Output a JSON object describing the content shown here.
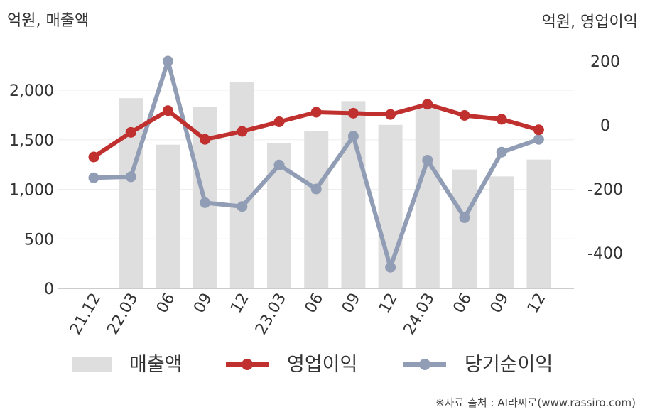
{
  "chart_data": {
    "type": "bar+line",
    "left_axis_unit": "억원, 매출액",
    "right_axis_unit": "억원, 영업이익",
    "categories": [
      "21.12",
      "22.03",
      "06",
      "09",
      "12",
      "23.03",
      "06",
      "09",
      "12",
      "24.03",
      "06",
      "09",
      "12"
    ],
    "left_ticks": [
      "0",
      "500",
      "1,000",
      "1,500",
      "2,000"
    ],
    "right_ticks": [
      "200",
      "0",
      "-200",
      "-400"
    ],
    "left_ylim": [
      0,
      2300
    ],
    "right_ylim": [
      -510,
      200
    ],
    "series": [
      {
        "name": "매출액",
        "type": "bar",
        "axis": "left",
        "color": "#dedede",
        "values": [
          null,
          1920,
          1450,
          1835,
          2080,
          1470,
          1590,
          1890,
          1650,
          1840,
          1200,
          1130,
          1300
        ]
      },
      {
        "name": "영업이익",
        "type": "line",
        "axis": "right",
        "color": "#c0302f",
        "values": [
          -100,
          -23,
          45,
          -45,
          -20,
          10,
          40,
          37,
          33,
          65,
          30,
          18,
          -15
        ]
      },
      {
        "name": "당기순이익",
        "type": "line",
        "axis": "right",
        "color": "#909db5",
        "values": [
          -165,
          -162,
          200,
          -243,
          -255,
          -125,
          -200,
          -35,
          -445,
          -110,
          -290,
          -85,
          -45
        ]
      }
    ],
    "grid": true,
    "legend_position": "bottom"
  },
  "source": "※자료 출처 : AI라씨로(www.rassiro.com)"
}
